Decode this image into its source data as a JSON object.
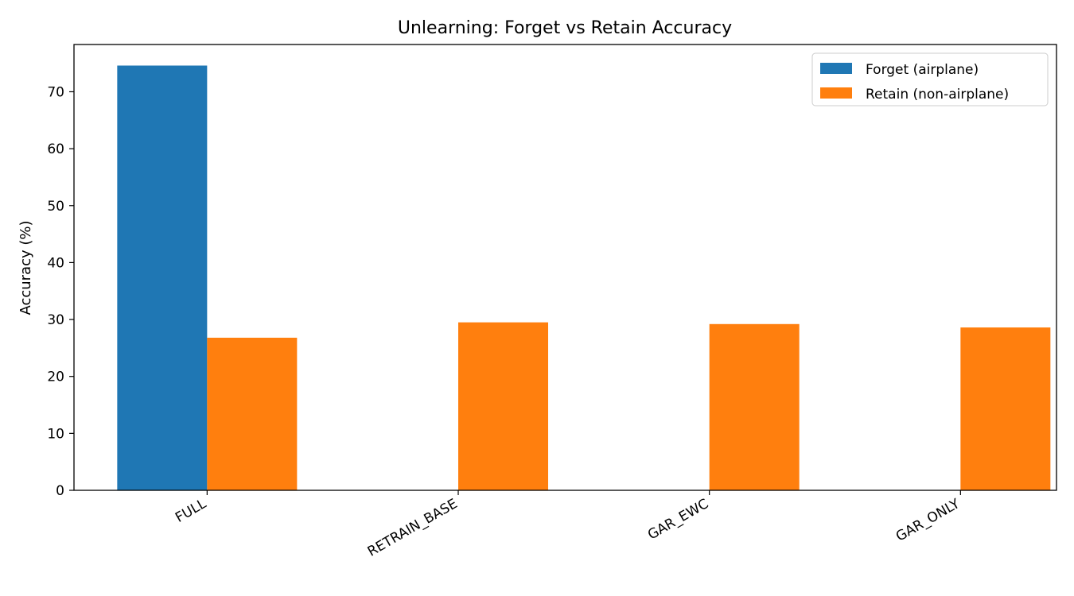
{
  "chart_data": {
    "type": "bar",
    "title": "Unlearning: Forget vs Retain Accuracy",
    "xlabel": "",
    "ylabel": "Accuracy (%)",
    "categories": [
      "FULL",
      "RETRAIN_BASE",
      "GAR_EWC",
      "GAR_ONLY"
    ],
    "series": [
      {
        "name": "Forget (airplane)",
        "color": "#1f77b4",
        "values": [
          74.6,
          0,
          0,
          0
        ]
      },
      {
        "name": "Retain (non-airplane)",
        "color": "#ff7f0e",
        "values": [
          26.8,
          29.5,
          29.2,
          28.6
        ]
      }
    ],
    "ylim": [
      0,
      78.3
    ],
    "yticks": [
      0,
      10,
      20,
      30,
      40,
      50,
      60,
      70
    ],
    "grid": false,
    "legend_position": "top-right"
  }
}
